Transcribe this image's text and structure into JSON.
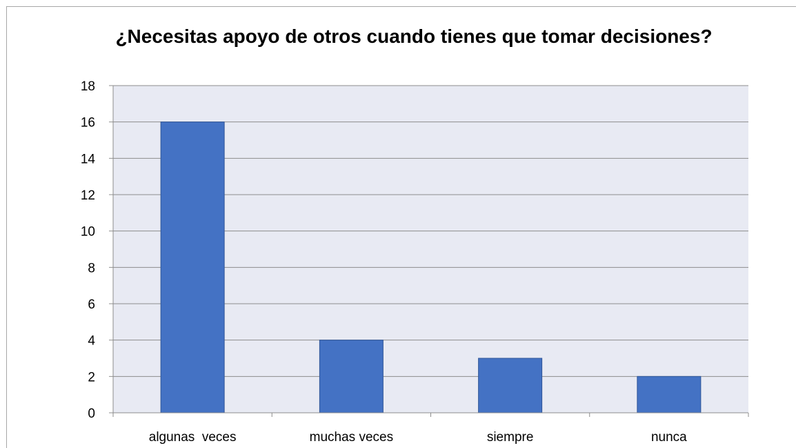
{
  "chart_data": {
    "type": "bar",
    "title": "¿Necesitas apoyo de otros cuando tienes que tomar decisiones?",
    "categories": [
      "algunas  veces",
      "muchas veces",
      "siempre",
      "nunca"
    ],
    "values": [
      16,
      4,
      3,
      2
    ],
    "ylim": [
      0,
      18
    ],
    "yticks": [
      0,
      2,
      4,
      6,
      8,
      10,
      12,
      14,
      16,
      18
    ],
    "xlabel": "",
    "ylabel": "",
    "grid": true,
    "legend": "none",
    "colors": {
      "bar": "#4472c4",
      "bar_border": "#2f5597",
      "plot_background": "#e8eaf3",
      "gridline": "#8c8c8c"
    }
  }
}
